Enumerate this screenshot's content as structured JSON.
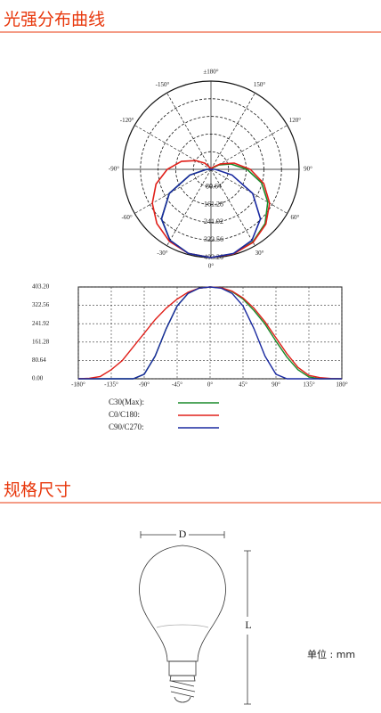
{
  "sections": [
    {
      "title": "光强分布曲线"
    },
    {
      "title": "规格尺寸"
    }
  ],
  "chart_data": [
    {
      "type": "polar",
      "angle_ticks": [
        {
          "value": 180,
          "label": "±180°"
        },
        {
          "value": -150,
          "label": "-150°"
        },
        {
          "value": 150,
          "label": "150°"
        },
        {
          "value": -120,
          "label": "-120°"
        },
        {
          "value": 120,
          "label": "120°"
        },
        {
          "value": -90,
          "label": "-90°"
        },
        {
          "value": 90,
          "label": "90°"
        },
        {
          "value": -60,
          "label": "-60°"
        },
        {
          "value": 60,
          "label": "60°"
        },
        {
          "value": -30,
          "label": "-30°"
        },
        {
          "value": 30,
          "label": "30°"
        },
        {
          "value": 0,
          "label": "0°"
        }
      ],
      "rlim": [
        0,
        403.2
      ],
      "rticks": [
        80.64,
        161.28,
        241.92,
        322.56,
        {
          "value": 403.2,
          "label": "403.20"
        }
      ],
      "grid": true
    },
    {
      "type": "line",
      "x": [
        -180,
        -165,
        -150,
        -135,
        -120,
        -105,
        -90,
        -75,
        -60,
        -45,
        -30,
        -15,
        0,
        15,
        30,
        45,
        60,
        75,
        90,
        105,
        120,
        135,
        150,
        165,
        180
      ],
      "series": [
        {
          "name": "C30(Max):",
          "color": "#1a8a2a",
          "values": [
            0,
            0,
            0,
            0,
            0,
            0,
            20,
            100,
            220,
            320,
            375,
            398,
            403.2,
            400,
            383,
            350,
            300,
            240,
            165,
            95,
            40,
            8,
            0,
            0,
            0
          ]
        },
        {
          "name": "C0/C180:",
          "color": "#e0201a",
          "values": [
            0,
            2,
            10,
            40,
            80,
            140,
            200,
            260,
            310,
            350,
            380,
            398,
            403.2,
            400,
            385,
            355,
            310,
            250,
            180,
            110,
            50,
            15,
            5,
            1,
            0
          ]
        },
        {
          "name": "C90/C270:",
          "color": "#1a2aa0",
          "values": [
            0,
            0,
            0,
            0,
            0,
            0,
            20,
            100,
            220,
            320,
            375,
            398,
            403.2,
            398,
            375,
            320,
            220,
            100,
            20,
            0,
            0,
            0,
            0,
            0,
            0
          ]
        }
      ],
      "xlim": [
        -180,
        180
      ],
      "xticks": [
        {
          "value": -180,
          "label": "-180°"
        },
        {
          "value": -135,
          "label": "-135°"
        },
        {
          "value": -90,
          "label": "-90°"
        },
        {
          "value": -45,
          "label": "-45°"
        },
        {
          "value": 0,
          "label": "0°"
        },
        {
          "value": 45,
          "label": "45°"
        },
        {
          "value": 90,
          "label": "90°"
        },
        {
          "value": 135,
          "label": "135°"
        },
        {
          "value": 180,
          "label": "180°"
        }
      ],
      "ylim": [
        0,
        403.2
      ],
      "yticks": [
        {
          "value": 0,
          "label": "0.00"
        },
        80.64,
        161.28,
        241.92,
        322.56,
        {
          "value": 403.2,
          "label": "403.20"
        }
      ],
      "grid": true
    }
  ],
  "dimensions": {
    "width_label": "D",
    "length_label": "L",
    "unit": "单位 : mm"
  }
}
